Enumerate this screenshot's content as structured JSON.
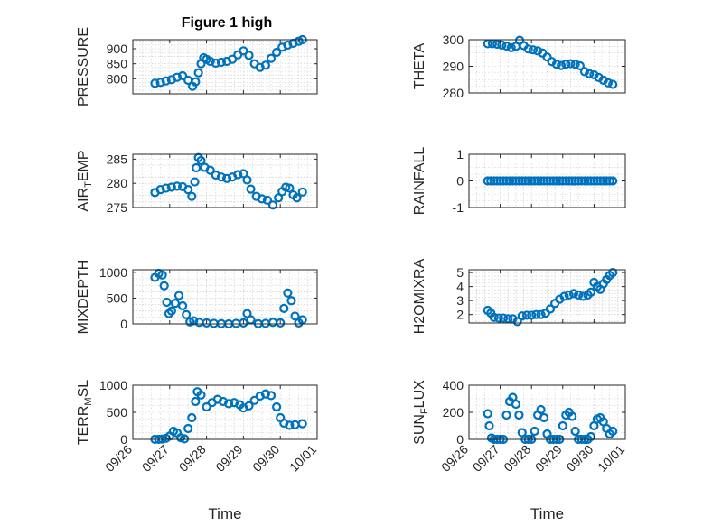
{
  "marker_color": "#0072BD",
  "chart_data": [
    {
      "type": "scatter",
      "title": "Figure 1 high",
      "ylabel": {
        "base": "PRESSURE",
        "sub": "",
        "suffix": ""
      },
      "xlabel": "",
      "ylim": [
        750,
        930
      ],
      "yticks": [
        800,
        850,
        900
      ],
      "ytick_labels": [
        "800",
        "850",
        "900"
      ],
      "xlim": [
        0,
        5
      ],
      "xticks": [
        0,
        1,
        2,
        3,
        4,
        5
      ],
      "xtick_labels": [
        "09/26",
        "09/27",
        "09/28",
        "09/29",
        "09/30",
        "10/01"
      ],
      "show_xtick_labels": false,
      "grid": true,
      "x": [
        0.6,
        0.75,
        0.9,
        1.05,
        1.2,
        1.35,
        1.5,
        1.62,
        1.7,
        1.78,
        1.85,
        1.92,
        2.0,
        2.1,
        2.25,
        2.4,
        2.55,
        2.7,
        2.85,
        3.0,
        3.15,
        3.3,
        3.45,
        3.6,
        3.75,
        3.9,
        4.05,
        4.2,
        4.35,
        4.5,
        4.6
      ],
      "y": [
        785,
        788,
        793,
        797,
        805,
        810,
        795,
        775,
        790,
        820,
        850,
        870,
        865,
        858,
        852,
        855,
        858,
        865,
        880,
        893,
        878,
        850,
        838,
        845,
        868,
        888,
        905,
        912,
        918,
        925,
        930
      ]
    },
    {
      "type": "scatter",
      "title": "",
      "ylabel": {
        "base": "THETA",
        "sub": "",
        "suffix": ""
      },
      "xlabel": "",
      "ylim": [
        280,
        300
      ],
      "yticks": [
        280,
        290,
        300
      ],
      "ytick_labels": [
        "280",
        "290",
        "300"
      ],
      "xlim": [
        0,
        5
      ],
      "xticks": [
        0,
        1,
        2,
        3,
        4,
        5
      ],
      "xtick_labels": [
        "09/26",
        "09/27",
        "09/28",
        "09/29",
        "09/30",
        "10/01"
      ],
      "show_xtick_labels": false,
      "grid": true,
      "x": [
        0.6,
        0.75,
        0.9,
        1.05,
        1.2,
        1.35,
        1.5,
        1.62,
        1.75,
        1.9,
        2.05,
        2.2,
        2.35,
        2.5,
        2.65,
        2.8,
        2.95,
        3.1,
        3.25,
        3.4,
        3.55,
        3.7,
        3.85,
        4.0,
        4.15,
        4.3,
        4.45,
        4.6
      ],
      "y": [
        298.5,
        298.5,
        298.3,
        298.0,
        297.6,
        297.0,
        297.5,
        299.8,
        297.8,
        296.5,
        296.2,
        295.8,
        295.0,
        293.5,
        291.8,
        290.8,
        290.3,
        290.8,
        291.0,
        290.8,
        290.2,
        288.0,
        287.2,
        286.8,
        285.8,
        284.8,
        283.8,
        283.2
      ]
    },
    {
      "type": "scatter",
      "title": "",
      "ylabel": {
        "base": "AIR",
        "sub": "T",
        "suffix": "EMP"
      },
      "xlabel": "",
      "ylim": [
        275,
        286
      ],
      "yticks": [
        275,
        280,
        285
      ],
      "ytick_labels": [
        "275",
        "280",
        "285"
      ],
      "xlim": [
        0,
        5
      ],
      "xticks": [
        0,
        1,
        2,
        3,
        4,
        5
      ],
      "xtick_labels": [
        "09/26",
        "09/27",
        "09/28",
        "09/29",
        "09/30",
        "10/01"
      ],
      "show_xtick_labels": false,
      "grid": true,
      "x": [
        0.6,
        0.75,
        0.9,
        1.05,
        1.2,
        1.35,
        1.5,
        1.6,
        1.68,
        1.72,
        1.78,
        1.85,
        1.95,
        2.1,
        2.25,
        2.4,
        2.55,
        2.7,
        2.85,
        3.0,
        3.1,
        3.2,
        3.35,
        3.5,
        3.65,
        3.8,
        3.95,
        4.05,
        4.15,
        4.25,
        4.35,
        4.45,
        4.6
      ],
      "y": [
        278.1,
        278.7,
        279.0,
        279.2,
        279.4,
        279.3,
        278.7,
        277.3,
        280.3,
        283.2,
        285.3,
        284.7,
        283.3,
        282.7,
        281.7,
        281.3,
        281.0,
        281.3,
        281.8,
        282.0,
        280.7,
        278.8,
        277.3,
        276.8,
        276.5,
        275.5,
        277.0,
        278.3,
        279.2,
        279.0,
        277.6,
        277.0,
        278.2
      ]
    },
    {
      "type": "scatter",
      "title": "",
      "ylabel": {
        "base": "RAINFALL",
        "sub": "",
        "suffix": ""
      },
      "xlabel": "",
      "ylim": [
        -1,
        1
      ],
      "yticks": [
        -1,
        0,
        1
      ],
      "ytick_labels": [
        "-1",
        "0",
        "1"
      ],
      "xlim": [
        0,
        5
      ],
      "xticks": [
        0,
        1,
        2,
        3,
        4,
        5
      ],
      "xtick_labels": [
        "09/26",
        "09/27",
        "09/28",
        "09/29",
        "09/30",
        "10/01"
      ],
      "show_xtick_labels": false,
      "grid": true,
      "x": [
        0.6,
        0.7,
        0.8,
        0.9,
        1.0,
        1.1,
        1.2,
        1.3,
        1.4,
        1.5,
        1.6,
        1.7,
        1.8,
        1.9,
        2.0,
        2.1,
        2.2,
        2.3,
        2.4,
        2.5,
        2.6,
        2.7,
        2.8,
        2.9,
        3.0,
        3.1,
        3.2,
        3.3,
        3.4,
        3.5,
        3.6,
        3.7,
        3.8,
        3.9,
        4.0,
        4.1,
        4.2,
        4.3,
        4.4,
        4.5,
        4.6
      ],
      "y": [
        0,
        0,
        0,
        0,
        0,
        0,
        0,
        0,
        0,
        0,
        0,
        0,
        0,
        0,
        0,
        0,
        0,
        0,
        0,
        0,
        0,
        0,
        0,
        0,
        0,
        0,
        0,
        0,
        0,
        0,
        0,
        0,
        0,
        0,
        0,
        0,
        0,
        0,
        0,
        0,
        0
      ]
    },
    {
      "type": "scatter",
      "title": "",
      "ylabel": {
        "base": "MIXDEPTH",
        "sub": "",
        "suffix": ""
      },
      "xlabel": "",
      "ylim": [
        0,
        1050
      ],
      "yticks": [
        0,
        500,
        1000
      ],
      "ytick_labels": [
        "0",
        "500",
        "1000"
      ],
      "xlim": [
        0,
        5
      ],
      "xticks": [
        0,
        1,
        2,
        3,
        4,
        5
      ],
      "xtick_labels": [
        "09/26",
        "09/27",
        "09/28",
        "09/29",
        "09/30",
        "10/01"
      ],
      "show_xtick_labels": false,
      "grid": true,
      "x": [
        0.6,
        0.7,
        0.8,
        0.85,
        0.92,
        0.98,
        1.05,
        1.15,
        1.25,
        1.35,
        1.45,
        1.55,
        1.65,
        1.8,
        2.0,
        2.2,
        2.4,
        2.6,
        2.8,
        3.0,
        3.1,
        3.2,
        3.4,
        3.6,
        3.8,
        4.0,
        4.1,
        4.2,
        4.3,
        4.4,
        4.5,
        4.6
      ],
      "y": [
        900,
        980,
        950,
        740,
        420,
        200,
        250,
        400,
        550,
        350,
        180,
        40,
        60,
        30,
        20,
        10,
        5,
        0,
        10,
        20,
        200,
        80,
        5,
        10,
        30,
        20,
        300,
        600,
        450,
        150,
        20,
        80
      ]
    },
    {
      "type": "scatter",
      "title": "",
      "ylabel": {
        "base": "H2OMIXRA",
        "sub": "",
        "suffix": ""
      },
      "xlabel": "",
      "ylim": [
        1.4,
        5.2
      ],
      "yticks": [
        2,
        3,
        4,
        5
      ],
      "ytick_labels": [
        "2",
        "3",
        "4",
        "5"
      ],
      "xlim": [
        0,
        5
      ],
      "xticks": [
        0,
        1,
        2,
        3,
        4,
        5
      ],
      "xtick_labels": [
        "09/26",
        "09/27",
        "09/28",
        "09/29",
        "09/30",
        "10/01"
      ],
      "show_xtick_labels": false,
      "grid": true,
      "x": [
        0.6,
        0.7,
        0.8,
        0.95,
        1.1,
        1.25,
        1.4,
        1.55,
        1.7,
        1.85,
        2.0,
        2.15,
        2.3,
        2.45,
        2.6,
        2.75,
        2.9,
        3.05,
        3.2,
        3.35,
        3.5,
        3.65,
        3.8,
        3.9,
        4.0,
        4.1,
        4.2,
        4.3,
        4.4,
        4.5,
        4.6
      ],
      "y": [
        2.3,
        2.1,
        1.8,
        1.75,
        1.75,
        1.7,
        1.7,
        1.5,
        1.9,
        1.95,
        1.95,
        2.0,
        2.0,
        2.1,
        2.4,
        2.8,
        3.1,
        3.3,
        3.4,
        3.5,
        3.4,
        3.3,
        3.4,
        3.6,
        4.3,
        4.0,
        3.8,
        4.2,
        4.5,
        4.8,
        5.0
      ]
    },
    {
      "type": "scatter",
      "title": "",
      "ylabel": {
        "base": "TERR",
        "sub": "M",
        "suffix": "SL"
      },
      "xlabel": "Time",
      "ylim": [
        0,
        1000
      ],
      "yticks": [
        0,
        500,
        1000
      ],
      "ytick_labels": [
        "0",
        "500",
        "1000"
      ],
      "xlim": [
        0,
        5
      ],
      "xticks": [
        0,
        1,
        2,
        3,
        4,
        5
      ],
      "xtick_labels": [
        "09/26",
        "09/27",
        "09/28",
        "09/29",
        "09/30",
        "10/01"
      ],
      "show_xtick_labels": true,
      "grid": true,
      "x": [
        0.6,
        0.7,
        0.8,
        0.9,
        1.0,
        1.1,
        1.2,
        1.3,
        1.4,
        1.5,
        1.6,
        1.7,
        1.75,
        1.85,
        2.0,
        2.15,
        2.3,
        2.45,
        2.6,
        2.75,
        2.9,
        3.0,
        3.15,
        3.3,
        3.45,
        3.6,
        3.75,
        3.9,
        4.0,
        4.1,
        4.25,
        4.4,
        4.6
      ],
      "y": [
        0,
        0,
        5,
        20,
        60,
        150,
        120,
        30,
        10,
        200,
        400,
        700,
        880,
        820,
        600,
        680,
        740,
        700,
        660,
        680,
        640,
        580,
        620,
        720,
        800,
        840,
        810,
        600,
        400,
        300,
        260,
        270,
        290
      ]
    },
    {
      "type": "scatter",
      "title": "",
      "ylabel": {
        "base": "SUN",
        "sub": "F",
        "suffix": "LUX"
      },
      "xlabel": "Time",
      "ylim": [
        0,
        400
      ],
      "yticks": [
        0,
        200,
        400
      ],
      "ytick_labels": [
        "0",
        "200",
        "400"
      ],
      "xlim": [
        0,
        5
      ],
      "xticks": [
        0,
        1,
        2,
        3,
        4,
        5
      ],
      "xtick_labels": [
        "09/26",
        "09/27",
        "09/28",
        "09/29",
        "09/30",
        "10/01"
      ],
      "show_xtick_labels": true,
      "grid": true,
      "x": [
        0.6,
        0.65,
        0.72,
        0.8,
        0.9,
        1.0,
        1.1,
        1.2,
        1.3,
        1.4,
        1.5,
        1.6,
        1.7,
        1.8,
        1.9,
        2.0,
        2.1,
        2.2,
        2.3,
        2.4,
        2.5,
        2.6,
        2.7,
        2.8,
        2.9,
        3.0,
        3.1,
        3.2,
        3.3,
        3.4,
        3.5,
        3.6,
        3.7,
        3.8,
        3.9,
        4.0,
        4.1,
        4.2,
        4.3,
        4.4,
        4.5,
        4.6
      ],
      "y": [
        190,
        100,
        10,
        0,
        0,
        0,
        0,
        180,
        280,
        310,
        260,
        180,
        50,
        0,
        0,
        0,
        60,
        180,
        220,
        160,
        40,
        0,
        0,
        0,
        0,
        100,
        180,
        200,
        170,
        60,
        0,
        0,
        0,
        0,
        20,
        100,
        150,
        160,
        130,
        80,
        40,
        60
      ]
    }
  ]
}
